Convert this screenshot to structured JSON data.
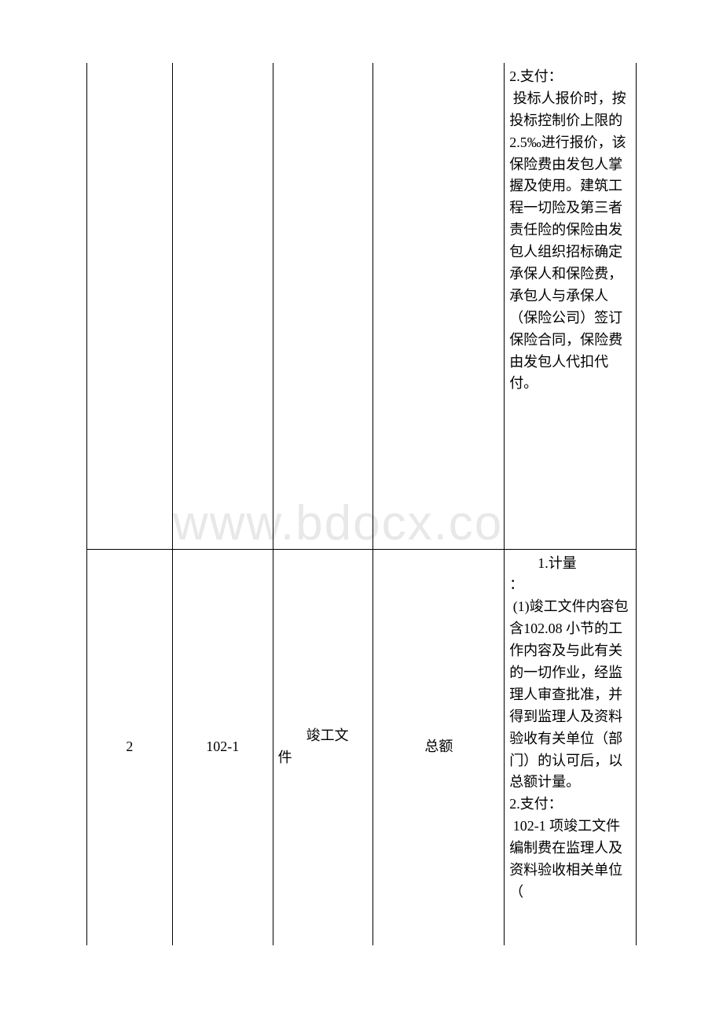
{
  "watermark": "www.bdocx.co",
  "table": {
    "border_color": "#000000",
    "background_color": "#ffffff",
    "text_color": "#000000",
    "font_size": 18,
    "columns": [
      {
        "width": 109,
        "align": "center"
      },
      {
        "width": 128,
        "align": "center"
      },
      {
        "width": 128,
        "align": "left"
      },
      {
        "width": 167,
        "align": "center"
      },
      {
        "width": 168,
        "align": "left"
      }
    ],
    "rows": [
      {
        "c1": "",
        "c2": "",
        "c3": "",
        "c4": "",
        "c5": "2.支付：\n 投标人报价时，按投标控制价上限的 2.5‰进行报价，该保险费由发包人掌握及使用。建筑工程一切险及第三者责任险的保险由发包人组织招标确定承保人和保险费，承包人与承保人（保险公司）签订保险合同，保险费由发包人代扣代付。"
      },
      {
        "c1": "2",
        "c2": "102-1",
        "c3_line1": "竣工文",
        "c3_line2": "件",
        "c4": "总额",
        "c5_indent": "1.计量",
        "c5_body": "：\n (1)竣工文件内容包含102.08 小节的工作内容及与此有关的一切作业，经监理人审查批准，并得到监理人及资料验收有关单位（部门）的认可后，以总额计量。\n2.支付：\n 102-1 项竣工文件编制费在监理人及资料验收相关单位（"
      }
    ]
  }
}
